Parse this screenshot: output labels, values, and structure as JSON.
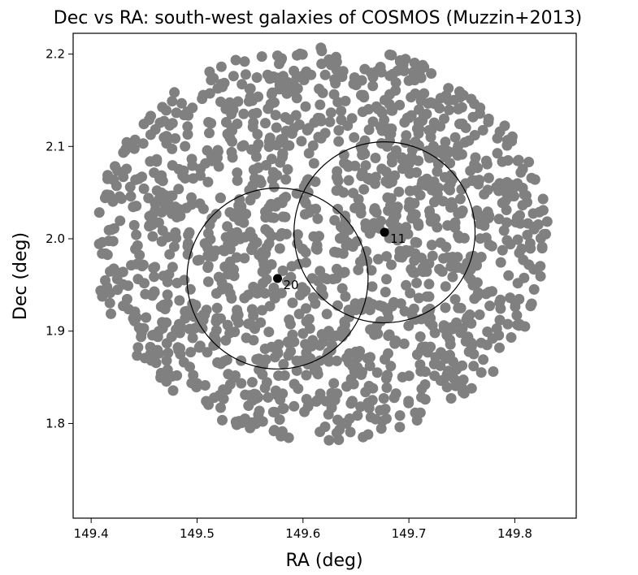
{
  "chart_data": {
    "type": "scatter",
    "title": "Dec vs RA: south-west galaxies of COSMOS (Muzzin+2013)",
    "xlabel": "RA (deg)",
    "ylabel": "Dec (deg)",
    "xlim": [
      149.383,
      149.858
    ],
    "ylim": [
      1.6975,
      2.2225
    ],
    "x_ticks": [
      "149.4",
      "149.5",
      "149.6",
      "149.7",
      "149.8"
    ],
    "x_tick_values": [
      149.4,
      149.5,
      149.6,
      149.7,
      149.8
    ],
    "y_ticks": [
      "1.8",
      "1.9",
      "2.0",
      "2.1",
      "2.2"
    ],
    "y_tick_values": [
      1.8,
      1.9,
      2.0,
      2.1,
      2.2
    ],
    "grid": false,
    "galaxy_field": {
      "color": "#808080",
      "center_ra": 149.617,
      "center_dec": 1.996,
      "radius_deg": 0.215,
      "approx_count": 1450,
      "ra_range": [
        149.405,
        149.832
      ],
      "dec_range": [
        1.779,
        2.212
      ]
    },
    "selected_points": [
      {
        "label": "20",
        "ra": 149.576,
        "dec": 1.957,
        "circle_radius_deg": 0.0855,
        "color": "#000000"
      },
      {
        "label": "11",
        "ra": 149.677,
        "dec": 2.007,
        "circle_radius_deg": 0.0855,
        "color": "#000000"
      }
    ]
  }
}
